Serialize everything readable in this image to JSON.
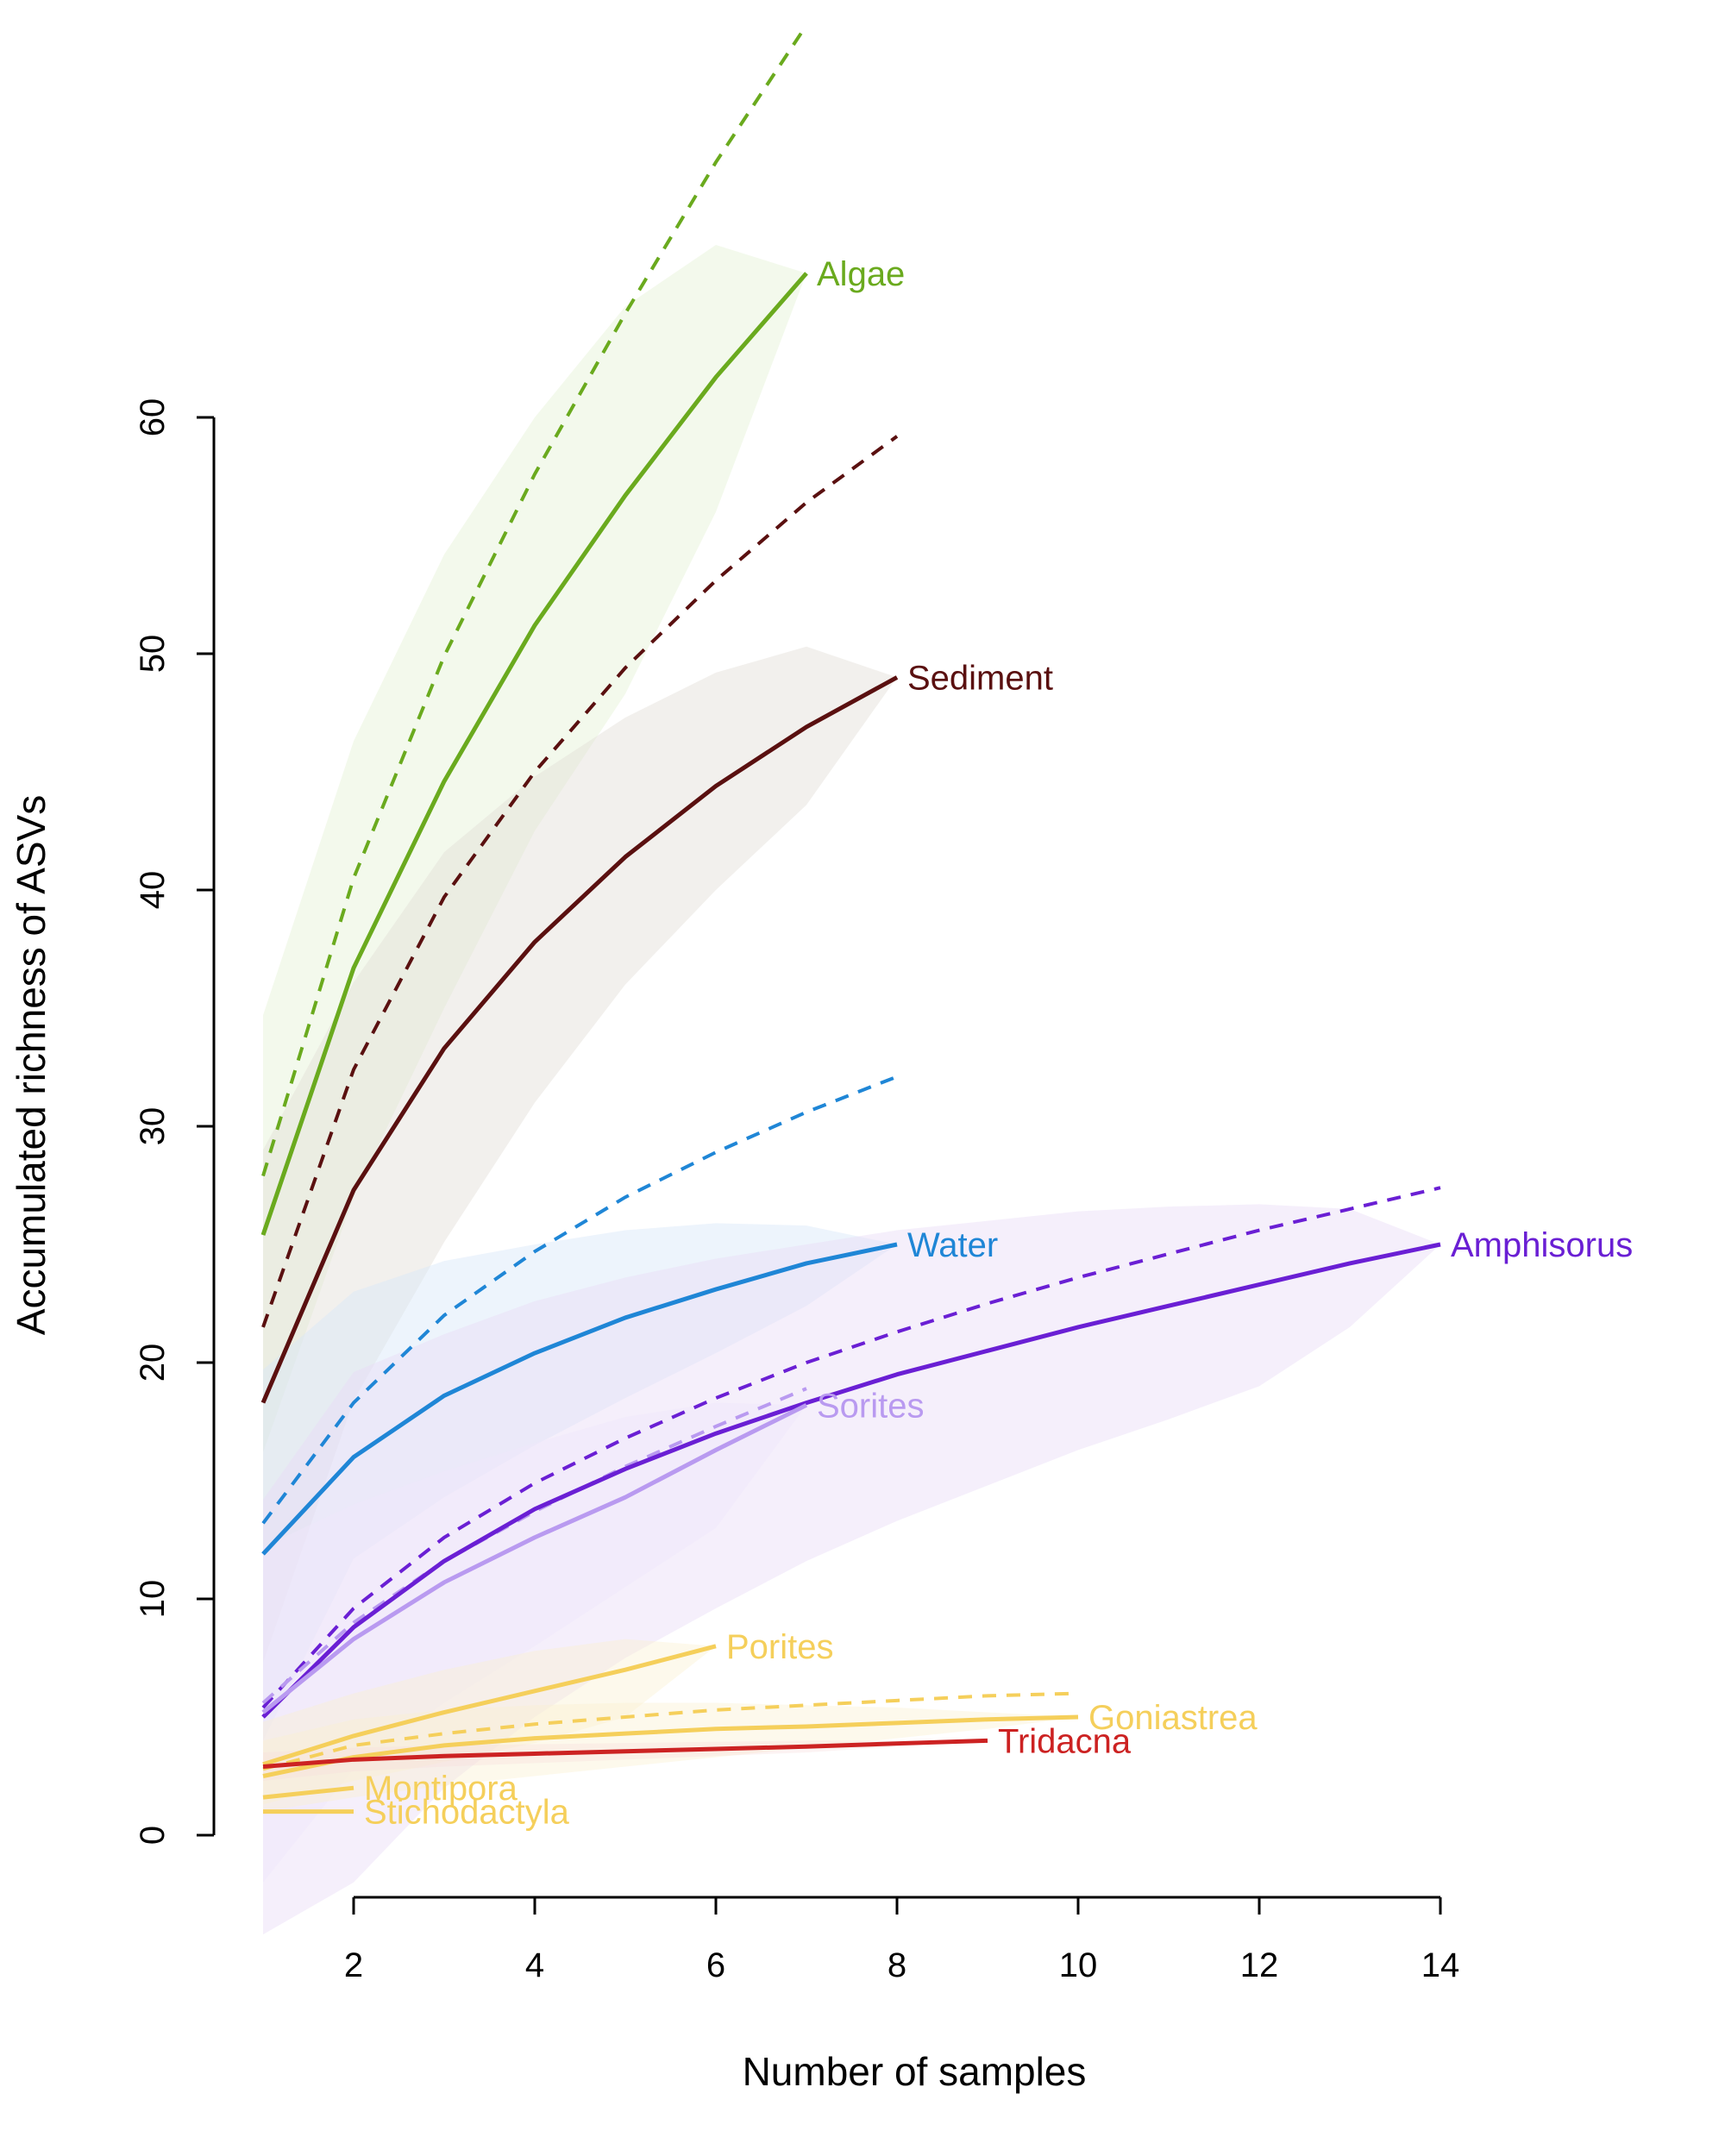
{
  "chart_data": {
    "type": "line",
    "xlabel": "Number of samples",
    "ylabel": "Accumulated richness of ASVs",
    "xlim": [
      0.9,
      14.2
    ],
    "ylim": [
      -4,
      77
    ],
    "x_axis": {
      "ticks": [
        2,
        4,
        6,
        8,
        10,
        12,
        14
      ],
      "labels": [
        "2",
        "4",
        "6",
        "8",
        "10",
        "12",
        "14"
      ]
    },
    "y_axis": {
      "ticks": [
        0,
        10,
        20,
        30,
        40,
        50,
        60
      ],
      "labels": [
        "0",
        "10",
        "20",
        "30",
        "40",
        "50",
        "60"
      ]
    },
    "grid": false,
    "legend": "none (series labels placed at line ends)",
    "series": [
      {
        "name": "Algae",
        "color": "#6aaa1e",
        "band_color": "#e5f2d5",
        "band_opacity": 0.45,
        "x": [
          1,
          2,
          3,
          4,
          5,
          6,
          7
        ],
        "y": [
          25.4,
          36.7,
          44.6,
          51.2,
          56.7,
          61.7,
          66.1
        ],
        "dashed_x": [
          1,
          2,
          3,
          4,
          5,
          6,
          7
        ],
        "dashed_y": [
          27.9,
          40.5,
          49.9,
          57.6,
          64.4,
          70.8,
          76.6
        ],
        "band_lower": [
          16.2,
          27.0,
          35.0,
          42.5,
          48.3,
          56.0,
          66.1
        ],
        "band_upper": [
          34.7,
          46.3,
          54.2,
          60.0,
          64.7,
          67.3,
          66.1
        ]
      },
      {
        "name": "Sediment",
        "color": "#5a1010",
        "band_color": "#e3ddd8",
        "band_opacity": 0.45,
        "x": [
          1,
          2,
          3,
          4,
          5,
          6,
          7,
          8
        ],
        "y": [
          18.3,
          27.3,
          33.3,
          37.8,
          41.4,
          44.4,
          46.9,
          49.0
        ],
        "dashed_x": [
          1,
          2,
          3,
          4,
          5,
          6,
          7,
          8
        ],
        "dashed_y": [
          21.5,
          32.4,
          39.7,
          45.0,
          49.4,
          53.1,
          56.4,
          59.2
        ],
        "band_lower": [
          7.3,
          18.4,
          25.1,
          31.0,
          36.0,
          40.0,
          43.6,
          49.0
        ],
        "band_upper": [
          29.0,
          36.1,
          41.6,
          44.8,
          47.3,
          49.2,
          50.3,
          49.0
        ]
      },
      {
        "name": "Water",
        "color": "#1f86d6",
        "band_color": "#d6e6f8",
        "band_opacity": 0.45,
        "x": [
          1,
          2,
          3,
          4,
          5,
          6,
          7,
          8
        ],
        "y": [
          11.9,
          16.0,
          18.6,
          20.4,
          21.9,
          23.1,
          24.2,
          25.0
        ],
        "dashed_x": [
          1,
          2,
          3,
          4,
          5,
          6,
          7,
          8
        ],
        "dashed_y": [
          13.2,
          18.3,
          22.0,
          24.7,
          27.0,
          28.9,
          30.6,
          32.1
        ],
        "band_lower": [
          4.0,
          11.7,
          14.3,
          16.5,
          18.5,
          20.4,
          22.4,
          25.0
        ],
        "band_upper": [
          19.7,
          23.0,
          24.3,
          25.0,
          25.6,
          25.9,
          25.8,
          25.0
        ]
      },
      {
        "name": "Amphisorus",
        "color": "#6a1fd4",
        "band_color": "#e8dcf7",
        "band_opacity": 0.45,
        "x": [
          1,
          2,
          3,
          4,
          5,
          6,
          7,
          8,
          9,
          10,
          11,
          12,
          13,
          14
        ],
        "y": [
          5.0,
          8.8,
          11.6,
          13.8,
          15.5,
          17.0,
          18.3,
          19.5,
          20.5,
          21.5,
          22.4,
          23.3,
          24.2,
          25.0
        ],
        "dashed_x": [
          1,
          2,
          3,
          4,
          5,
          6,
          7,
          8,
          9,
          10,
          11,
          12,
          13,
          14
        ],
        "dashed_y": [
          5.4,
          9.6,
          12.6,
          14.9,
          16.8,
          18.5,
          20.0,
          21.3,
          22.5,
          23.6,
          24.6,
          25.6,
          26.5,
          27.4
        ],
        "band_lower": [
          -4.2,
          -2.0,
          2.0,
          5.0,
          7.5,
          9.6,
          11.6,
          13.3,
          14.8,
          16.3,
          17.6,
          19.0,
          21.5,
          25.0
        ],
        "band_upper": [
          14.2,
          19.6,
          21.2,
          22.6,
          23.6,
          24.4,
          25.0,
          25.6,
          26.0,
          26.4,
          26.6,
          26.7,
          26.5,
          25.0
        ]
      },
      {
        "name": "Sorites",
        "color": "#b99af0",
        "band_color": "#efe6fb",
        "band_opacity": 0.45,
        "x": [
          1,
          2,
          3,
          4,
          5,
          6,
          7
        ],
        "y": [
          5.2,
          8.3,
          10.7,
          12.6,
          14.3,
          16.3,
          18.2
        ],
        "dashed_x": [
          1,
          2,
          3,
          4,
          5,
          6,
          7
        ],
        "dashed_y": [
          5.6,
          9.0,
          11.6,
          13.7,
          15.6,
          17.3,
          18.9
        ],
        "band_lower": [
          -2.0,
          2.8,
          5.6,
          8.0,
          10.5,
          13.0,
          18.2
        ],
        "band_upper": [
          12.2,
          14.0,
          15.4,
          16.6,
          17.7,
          18.3,
          18.2
        ]
      },
      {
        "name": "Porites",
        "color": "#f5cf5b",
        "band_color": "#fbefcf",
        "band_opacity": 0.4,
        "x": [
          1,
          2,
          3,
          4,
          5,
          6
        ],
        "y": [
          3.0,
          4.2,
          5.2,
          6.1,
          7.0,
          8.0
        ],
        "band_lower": [
          1.3,
          2.3,
          3.1,
          3.9,
          5.0,
          8.0
        ],
        "band_upper": [
          4.8,
          6.0,
          7.0,
          7.8,
          8.3,
          8.0
        ]
      },
      {
        "name": "Goniastrea",
        "color": "#f5cf5b",
        "band_color": "#fbefcf",
        "band_opacity": 0.4,
        "x": [
          1,
          2,
          3,
          4,
          5,
          6,
          7,
          8,
          9,
          10
        ],
        "y": [
          2.5,
          3.3,
          3.8,
          4.1,
          4.3,
          4.5,
          4.6,
          4.75,
          4.9,
          5.0
        ],
        "dashed_x": [
          1,
          2,
          3,
          4,
          5,
          6,
          7,
          8,
          9,
          10
        ],
        "dashed_y": [
          2.8,
          3.8,
          4.3,
          4.7,
          5.0,
          5.3,
          5.5,
          5.7,
          5.9,
          6.0
        ],
        "band_lower": [
          1.0,
          1.6,
          2.1,
          2.5,
          2.9,
          3.3,
          3.7,
          4.1,
          4.5,
          5.0
        ],
        "band_upper": [
          4.0,
          4.9,
          5.3,
          5.5,
          5.6,
          5.6,
          5.5,
          5.4,
          5.2,
          5.0
        ]
      },
      {
        "name": "Tridacna",
        "color": "#cc2222",
        "band_color": "#f6dede",
        "band_opacity": 0.35,
        "x": [
          1,
          2,
          3,
          4,
          5,
          6,
          7,
          8,
          9
        ],
        "y": [
          2.9,
          3.2,
          3.35,
          3.45,
          3.55,
          3.65,
          3.75,
          3.88,
          4.0
        ],
        "band_lower": [
          2.3,
          2.7,
          2.9,
          3.05,
          3.2,
          3.35,
          3.5,
          3.75,
          4.0
        ],
        "band_upper": [
          3.5,
          3.7,
          3.8,
          3.85,
          3.9,
          3.95,
          4.0,
          4.0,
          4.0
        ]
      },
      {
        "name": "Montipora",
        "color": "#f5cf5b",
        "x": [
          1,
          2
        ],
        "y": [
          1.6,
          2.0
        ]
      },
      {
        "name": "Stichodactyla",
        "color": "#f5cf5b",
        "x": [
          1,
          2
        ],
        "y": [
          1.0,
          1.0
        ]
      }
    ]
  }
}
